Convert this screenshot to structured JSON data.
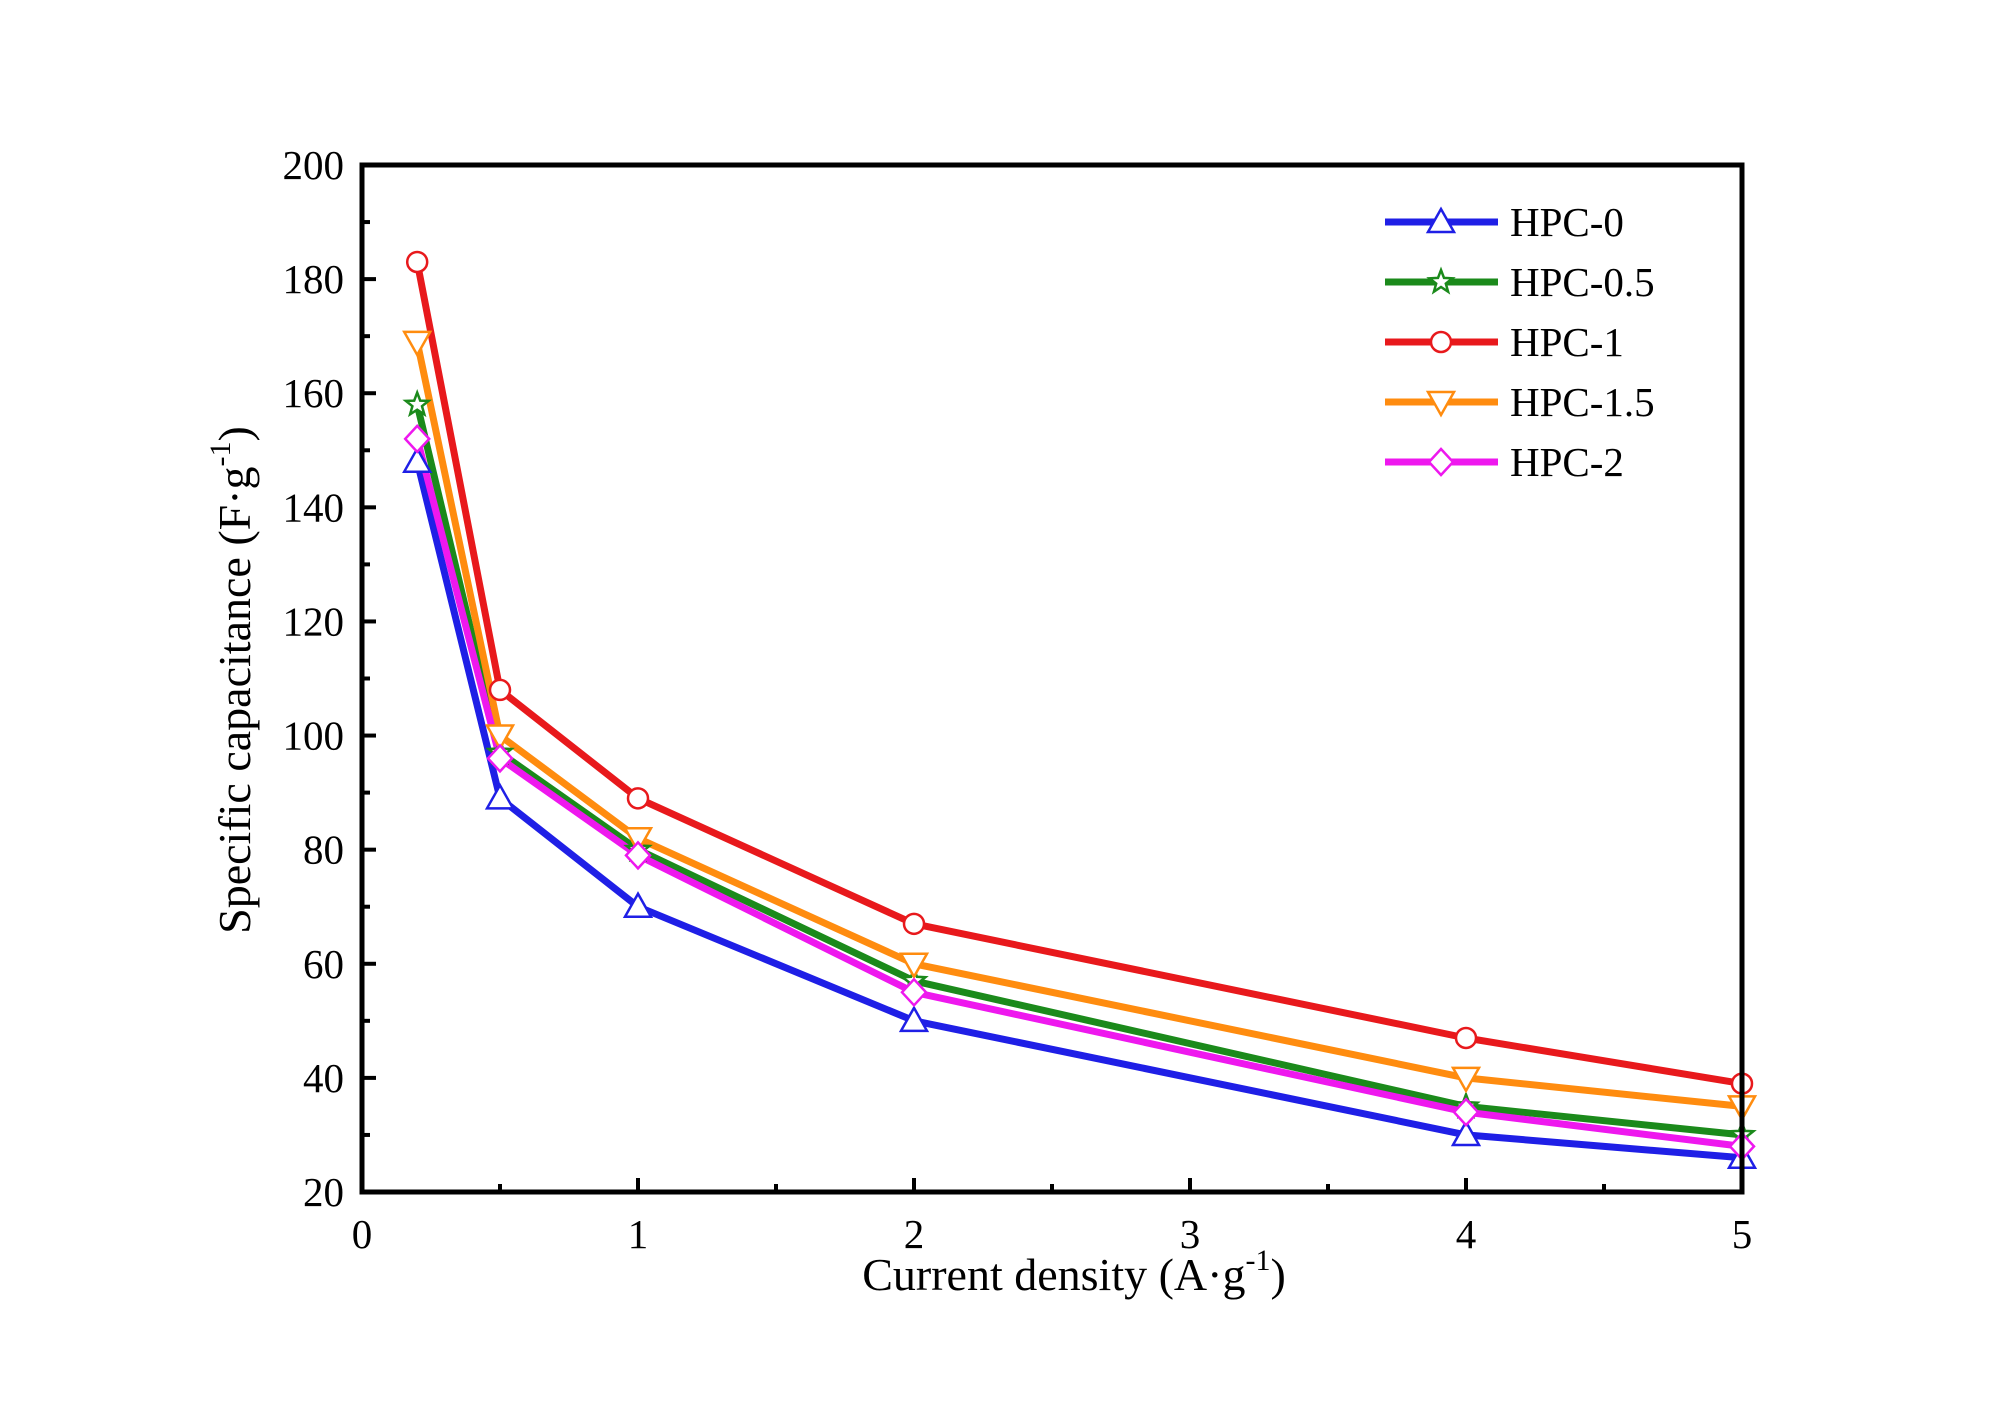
{
  "chart_data": {
    "type": "line",
    "title": "",
    "xlabel": "Current density (A·g",
    "xlabel_sup": "-1",
    "xlabel_end": ")",
    "ylabel": "Specific capacitance (F·g",
    "ylabel_sup": "-1",
    "ylabel_end": ")",
    "xlim": [
      0,
      5
    ],
    "ylim": [
      20,
      200
    ],
    "xticks": [
      0,
      1,
      2,
      3,
      4,
      5
    ],
    "xtick_labels": [
      "0",
      "1",
      "2",
      "3",
      "4",
      "5"
    ],
    "yticks": [
      20,
      40,
      60,
      80,
      100,
      120,
      140,
      160,
      180,
      200
    ],
    "ytick_labels": [
      "20",
      "40",
      "60",
      "80",
      "100",
      "120",
      "140",
      "160",
      "180",
      "200"
    ],
    "x": [
      0.2,
      0.5,
      1,
      2,
      4,
      5
    ],
    "legend_position": "top-right",
    "series": [
      {
        "name": "HPC-0",
        "color": "#1f1fe6",
        "marker": "triangle-up",
        "values": [
          148,
          89,
          70,
          50,
          30,
          26
        ]
      },
      {
        "name": "HPC-0.5",
        "color": "#1b8a1b",
        "marker": "star",
        "values": [
          158,
          97,
          80,
          57,
          35,
          30
        ]
      },
      {
        "name": "HPC-1",
        "color": "#e8191c",
        "marker": "circle",
        "values": [
          183,
          108,
          89,
          67,
          47,
          39
        ]
      },
      {
        "name": "HPC-1.5",
        "color": "#ff8c0f",
        "marker": "triangle-down",
        "values": [
          169,
          100,
          82,
          60,
          40,
          35
        ]
      },
      {
        "name": "HPC-2",
        "color": "#ee18ee",
        "marker": "diamond",
        "values": [
          152,
          96,
          79,
          55,
          34,
          28
        ]
      }
    ]
  }
}
